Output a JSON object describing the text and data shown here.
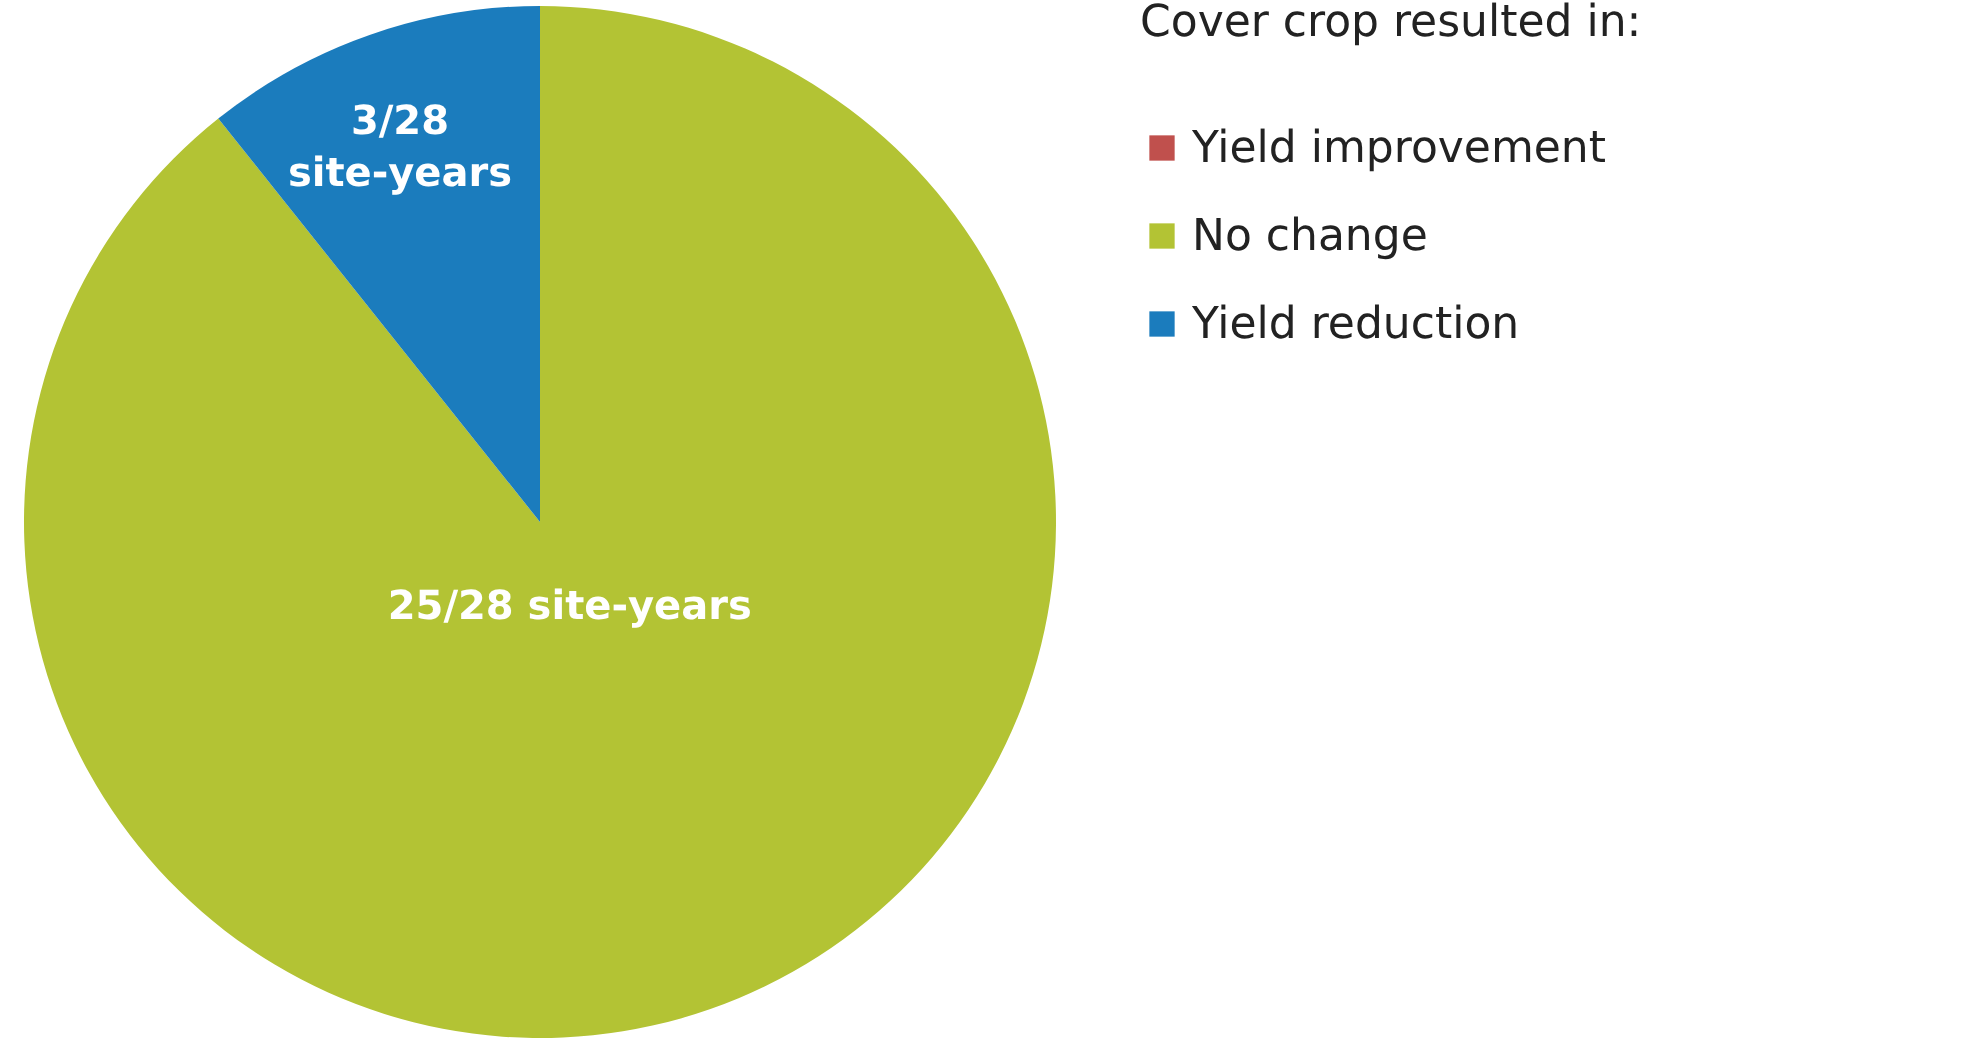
{
  "chart_data": {
    "type": "pie",
    "legend_title": "Cover crop resulted in:",
    "categories": [
      "Yield improvement",
      "No change",
      "Yield reduction"
    ],
    "values": [
      0,
      25,
      3
    ],
    "colors": [
      "#c0504d",
      "#b3c334",
      "#1b7cbd"
    ],
    "value_labels": [
      null,
      "25/28 site-years",
      "3/28 site-years"
    ],
    "legend": "right"
  }
}
